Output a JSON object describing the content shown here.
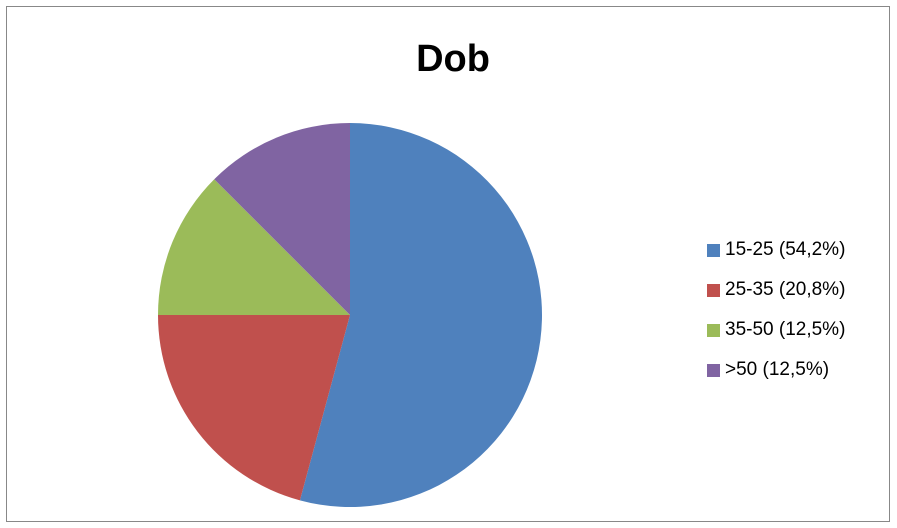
{
  "chart_data": {
    "type": "pie",
    "title": "Dob",
    "categories": [
      "15-25 (54,2%)",
      "25-35 (20,8%)",
      "35-50 (12,5%)",
      ">50 (12,5%)"
    ],
    "values": [
      54.2,
      20.8,
      12.5,
      12.5
    ],
    "colors": [
      "#4F81BD",
      "#C0504D",
      "#9BBB59",
      "#8064A2"
    ],
    "legend_position": "right"
  }
}
